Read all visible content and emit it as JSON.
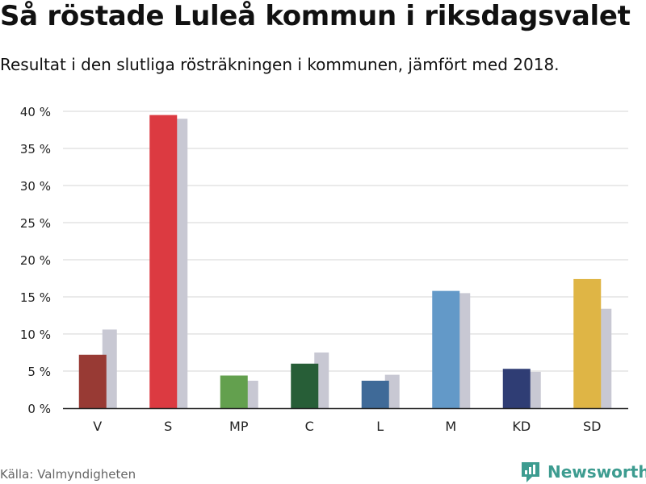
{
  "header": {
    "title": "Så röstade Luleå kommun i riksdagsvalet",
    "subtitle": "Resultat i den slutliga rösträkningen i kommunen, jämfört med 2018."
  },
  "footer": {
    "source": "Källa: Valmyndigheten",
    "brand": "Newsworthy",
    "brand_color": "#3d9c90"
  },
  "chart_data": {
    "type": "bar",
    "categories": [
      "V",
      "S",
      "MP",
      "C",
      "L",
      "M",
      "KD",
      "SD"
    ],
    "series": [
      {
        "values": [
          7.2,
          39.5,
          4.4,
          6.0,
          3.7,
          15.8,
          5.3,
          17.4
        ],
        "colors": [
          "#983a34",
          "#dc3a41",
          "#63a04e",
          "#275e37",
          "#3f6a98",
          "#6399c8",
          "#2f3d74",
          "#dfb545"
        ]
      },
      {
        "values": [
          10.6,
          39.0,
          3.7,
          7.5,
          4.5,
          15.5,
          4.9,
          13.4
        ],
        "color": "#c8c8d3"
      }
    ],
    "yticks": [
      0,
      5,
      10,
      15,
      20,
      25,
      30,
      35,
      40
    ],
    "ytick_suffix": " %",
    "ylim": [
      0,
      40
    ],
    "xlabel": "",
    "ylabel": "",
    "grid": true
  }
}
